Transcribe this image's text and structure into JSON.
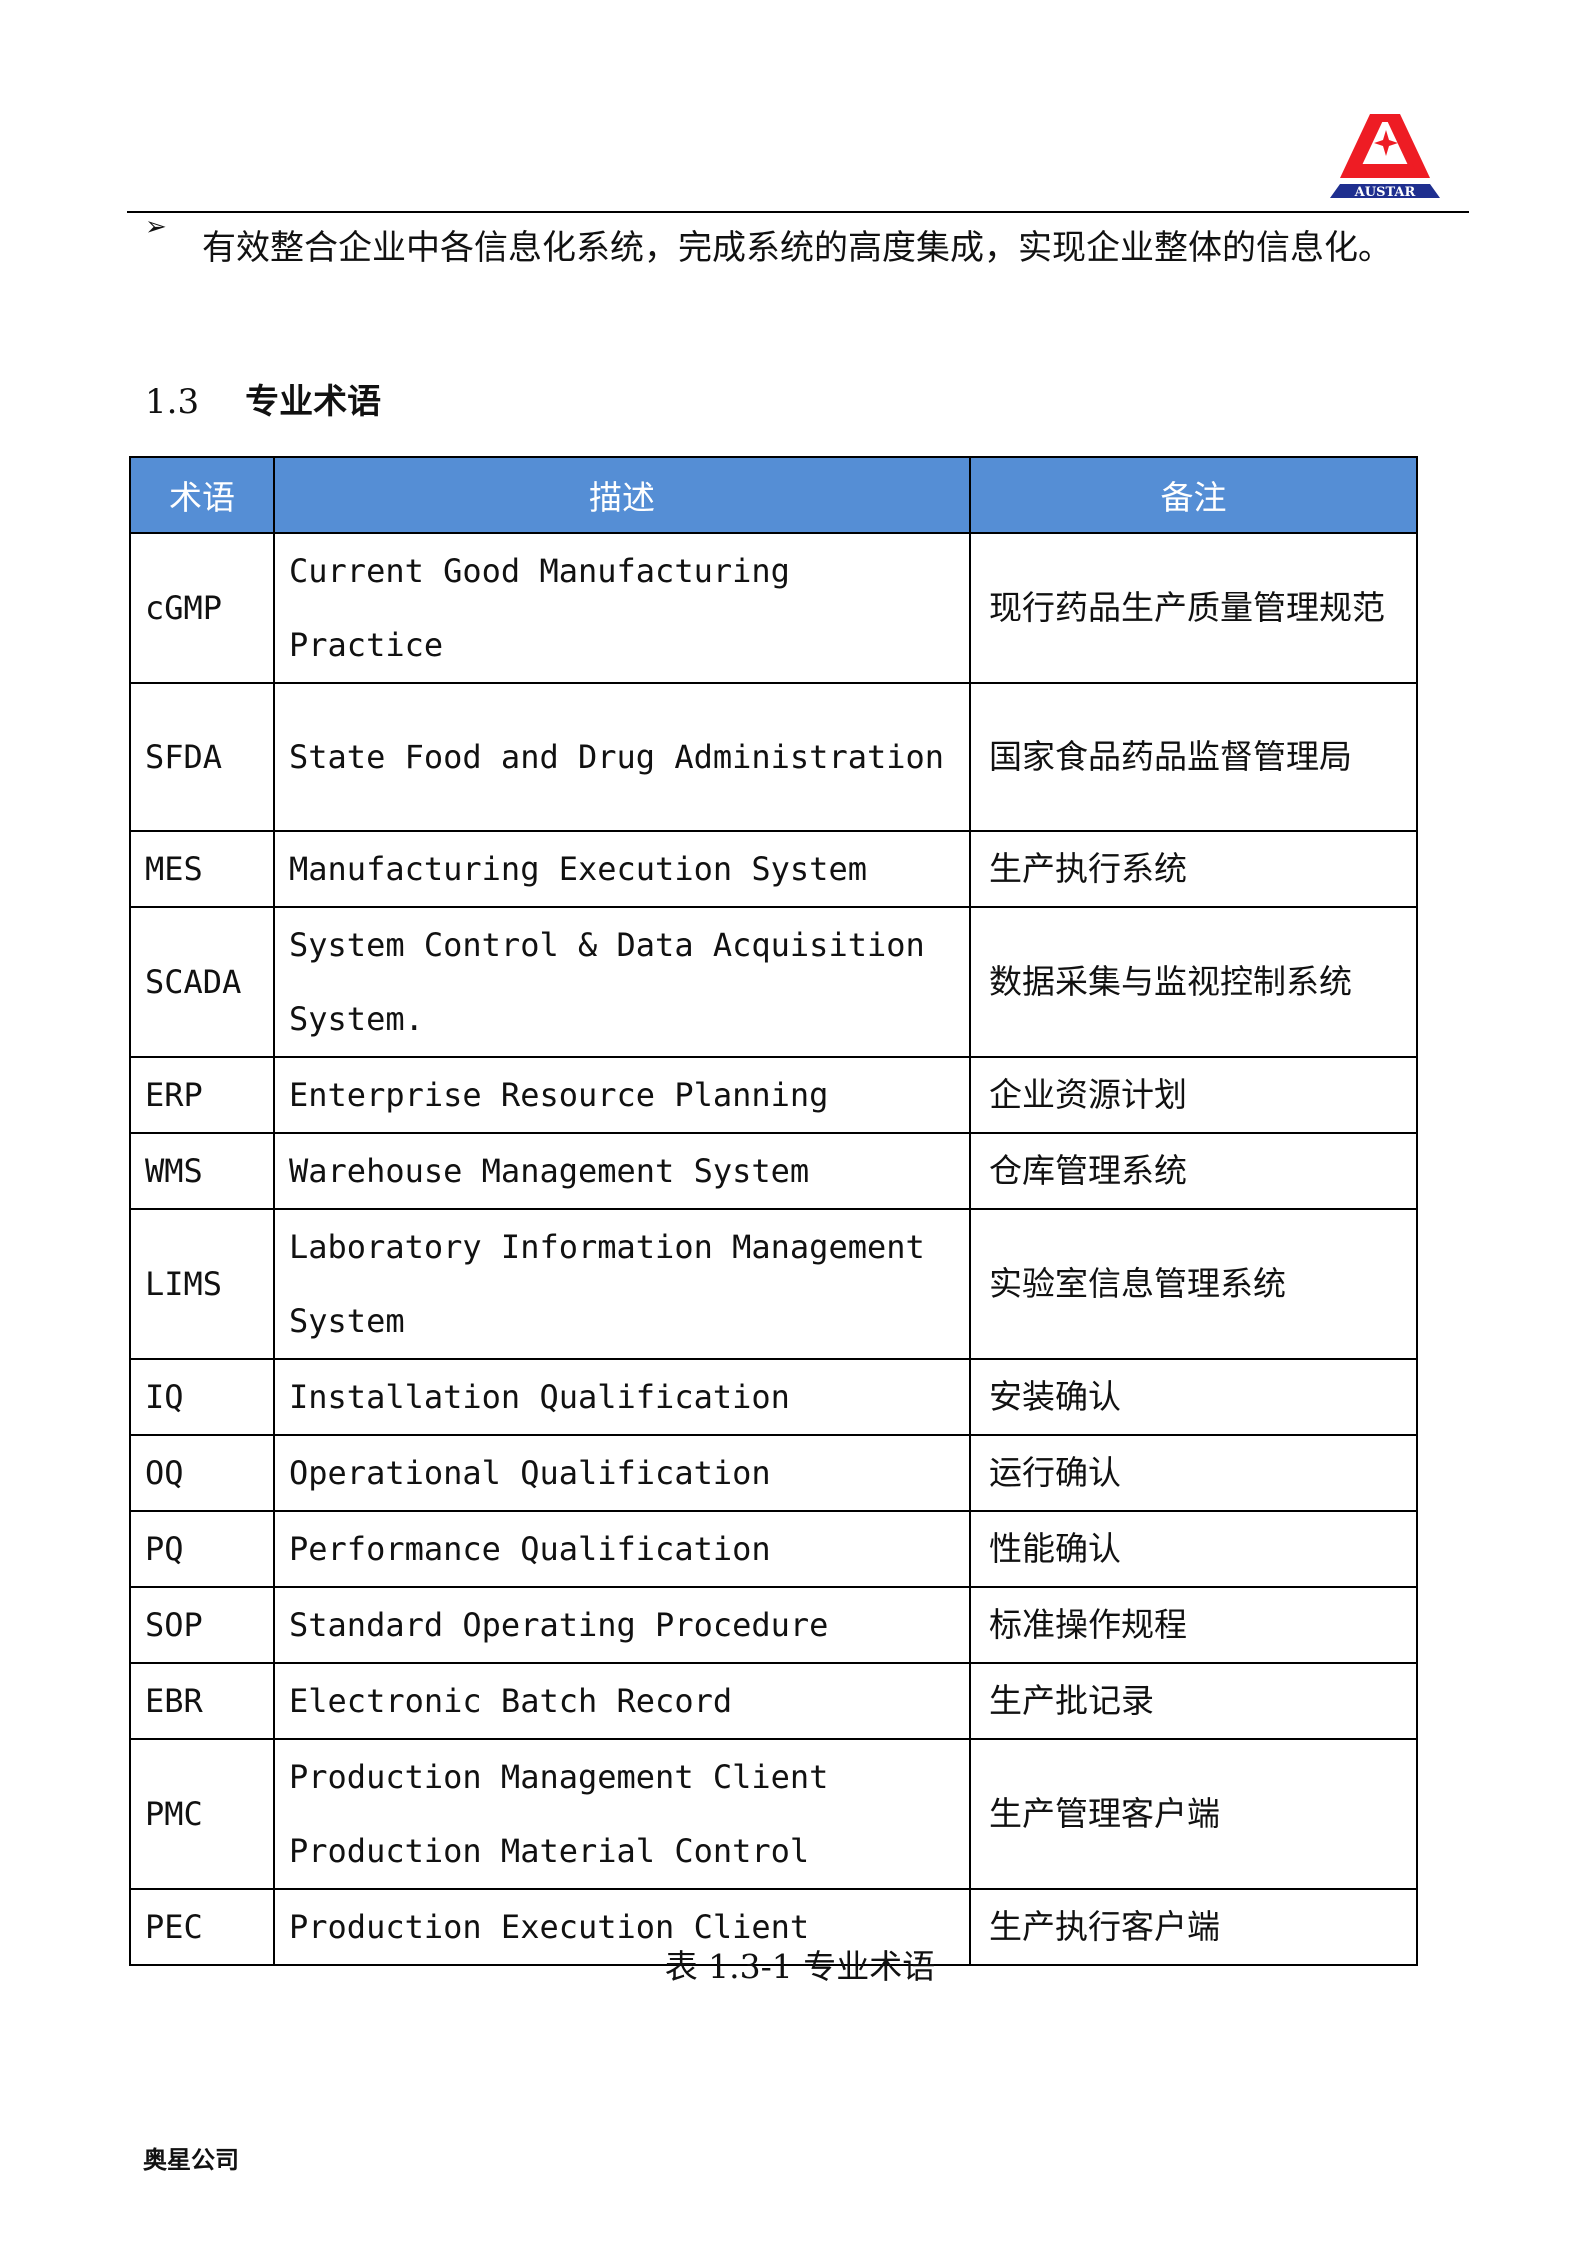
{
  "header": {
    "logo_text": "AUSTAR",
    "logo_colors": {
      "red": "#ee1c24",
      "blue": "#1f2f8f"
    }
  },
  "intro": {
    "bullet_icon": "arrow-bullet-icon",
    "bullet_glyph": "➢",
    "text": "有效整合企业中各信息化系统，完成系统的高度集成，实现企业整体的信息化。"
  },
  "section": {
    "number": "1.3",
    "title": "专业术语"
  },
  "table": {
    "header_color": "#558ed5",
    "columns": [
      "术语",
      "描述",
      "备注"
    ],
    "rows": [
      {
        "term": "cGMP",
        "desc": [
          "Current Good Manufacturing Practice"
        ],
        "note": "现行药品生产质量管理规范",
        "tall": true
      },
      {
        "term": "SFDA",
        "desc": [
          "State Food and Drug Administration"
        ],
        "note": "国家食品药品监督管理局",
        "tall": true
      },
      {
        "term": "MES",
        "desc": [
          "Manufacturing Execution System"
        ],
        "note": "生产执行系统"
      },
      {
        "term": "SCADA",
        "desc": [
          "System Control & Data Acquisition System."
        ],
        "note": "数据采集与监视控制系统",
        "tall": true
      },
      {
        "term": "ERP",
        "desc": [
          "Enterprise Resource Planning"
        ],
        "note": "企业资源计划"
      },
      {
        "term": "WMS",
        "desc": [
          "Warehouse Management System"
        ],
        "note": "仓库管理系统"
      },
      {
        "term": "LIMS",
        "desc": [
          "Laboratory Information Management System"
        ],
        "note": "实验室信息管理系统",
        "tall": true
      },
      {
        "term": "IQ",
        "desc": [
          "Installation Qualification"
        ],
        "note": "安装确认"
      },
      {
        "term": "OQ",
        "desc": [
          "Operational Qualification"
        ],
        "note": "运行确认"
      },
      {
        "term": "PQ",
        "desc": [
          "Performance Qualification"
        ],
        "note": "性能确认"
      },
      {
        "term": "SOP",
        "desc": [
          "Standard Operating Procedure"
        ],
        "note": "标准操作规程"
      },
      {
        "term": "EBR",
        "desc": [
          "Electronic Batch Record"
        ],
        "note": "生产批记录"
      },
      {
        "term": "PMC",
        "desc": [
          "Production Management Client",
          "Production Material Control"
        ],
        "note": "生产管理客户端",
        "tall": true
      },
      {
        "term": "PEC",
        "desc": [
          "Production Execution Client"
        ],
        "note": "生产执行客户端"
      }
    ],
    "caption": "表 1.3-1 专业术语"
  },
  "footer": {
    "company": "奥星公司"
  }
}
